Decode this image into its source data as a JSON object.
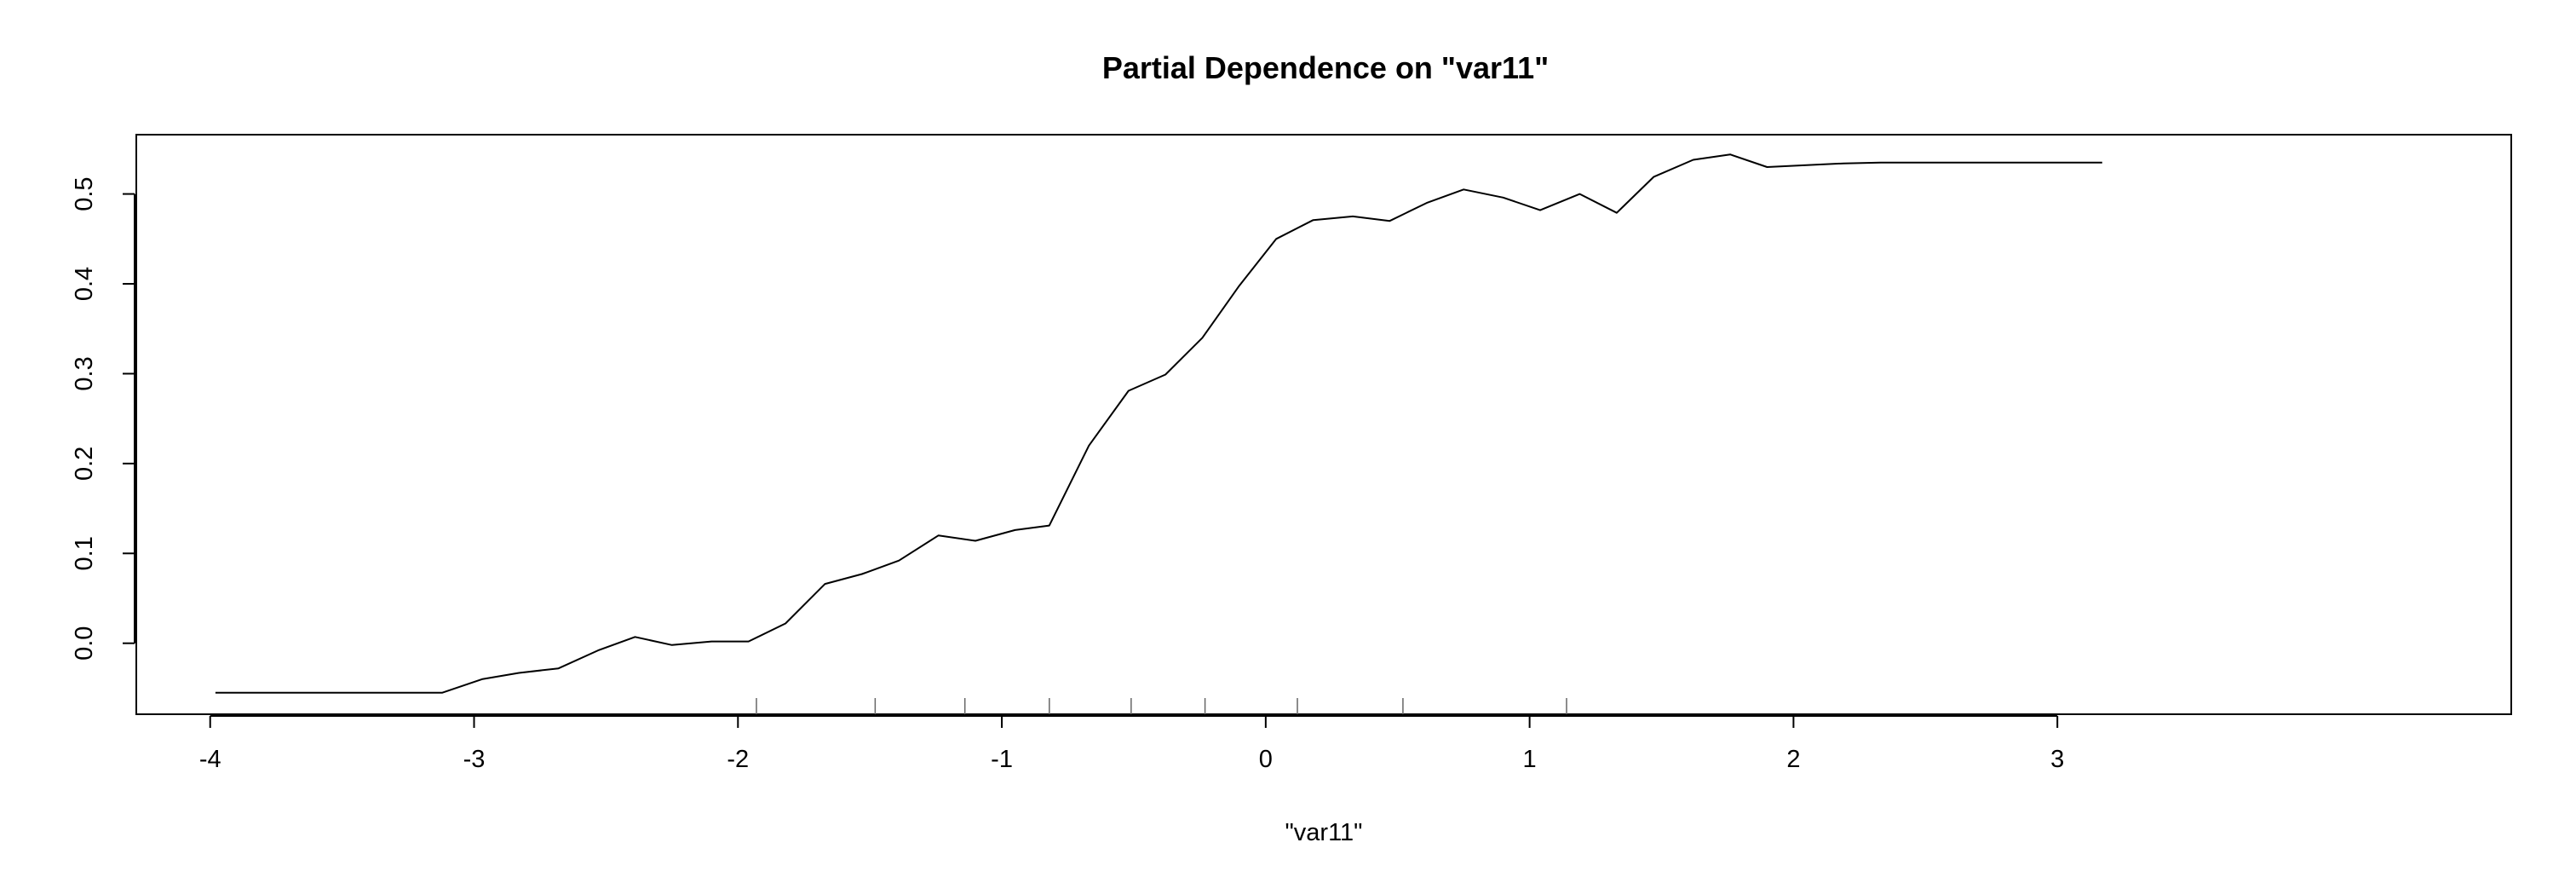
{
  "chart_data": {
    "type": "line",
    "title": "Partial Dependence on \"var11\"",
    "xlabel": "\"var11\"",
    "ylabel": "",
    "xlim": [
      -4.28,
      4.72
    ],
    "ylim": [
      -0.079,
      0.566
    ],
    "x_ticks": [
      {
        "value": -4,
        "label": "-4"
      },
      {
        "value": -3,
        "label": "-3"
      },
      {
        "value": -2,
        "label": "-2"
      },
      {
        "value": -1,
        "label": "-1"
      },
      {
        "value": 0,
        "label": "0"
      },
      {
        "value": 1,
        "label": "1"
      },
      {
        "value": 2,
        "label": "2"
      },
      {
        "value": 3,
        "label": "3"
      }
    ],
    "y_ticks": [
      {
        "value": 0.0,
        "label": "0.0"
      },
      {
        "value": 0.1,
        "label": "0.1"
      },
      {
        "value": 0.2,
        "label": "0.2"
      },
      {
        "value": 0.3,
        "label": "0.3"
      },
      {
        "value": 0.4,
        "label": "0.4"
      },
      {
        "value": 0.5,
        "label": "0.5"
      }
    ],
    "grid": false,
    "series": [
      {
        "color": "#000000",
        "x": [
          -3.98,
          -3.12,
          -2.97,
          -2.83,
          -2.68,
          -2.53,
          -2.39,
          -2.25,
          -2.1,
          -1.96,
          -1.82,
          -1.67,
          -1.53,
          -1.39,
          -1.24,
          -1.1,
          -0.95,
          -0.82,
          -0.67,
          -0.52,
          -0.38,
          -0.24,
          -0.1,
          0.04,
          0.18,
          0.33,
          0.47,
          0.61,
          0.75,
          0.9,
          1.04,
          1.19,
          1.33,
          1.47,
          1.62,
          1.76,
          1.9,
          2.05,
          2.19,
          2.33,
          2.48,
          2.62,
          2.77,
          2.91,
          3.05,
          3.17
        ],
        "y": [
          -0.055,
          -0.055,
          -0.04,
          -0.033,
          -0.028,
          -0.008,
          0.007,
          -0.002,
          0.002,
          0.002,
          0.022,
          0.066,
          0.077,
          0.092,
          0.12,
          0.114,
          0.126,
          0.131,
          0.22,
          0.281,
          0.299,
          0.34,
          0.398,
          0.45,
          0.471,
          0.475,
          0.47,
          0.49,
          0.505,
          0.496,
          0.482,
          0.5,
          0.479,
          0.519,
          0.538,
          0.544,
          0.53,
          0.532,
          0.534,
          0.535,
          0.535,
          0.535,
          0.535,
          0.535,
          0.535,
          0.535
        ]
      }
    ],
    "rug": [
      -1.93,
      -1.48,
      -1.14,
      -0.82,
      -0.51,
      -0.23,
      0.12,
      0.52,
      1.14
    ]
  }
}
